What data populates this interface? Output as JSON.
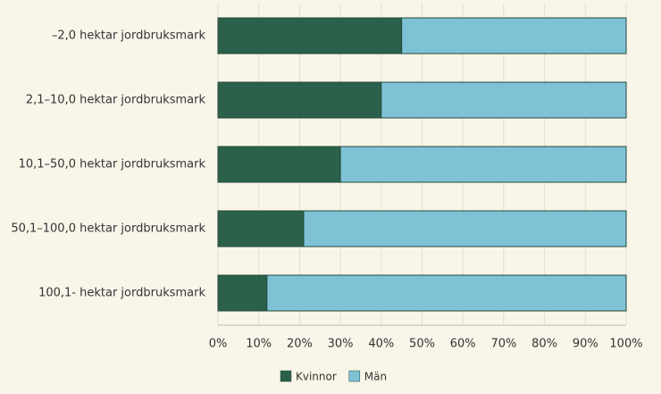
{
  "chart_data": {
    "type": "stacked-bar-horizontal",
    "categories": [
      "–2,0 hektar jordbruksmark",
      "2,1–10,0 hektar jordbruksmark",
      "10,1–50,0 hektar jordbruksmark",
      "50,1–100,0 hektar jordbruksmark",
      "100,1- hektar jordbruksmark"
    ],
    "series": [
      {
        "name": "Kvinnor",
        "color": "#2b614a",
        "values": [
          45,
          40,
          30,
          21,
          12
        ]
      },
      {
        "name": "Män",
        "color": "#7fc2d6",
        "values": [
          55,
          60,
          70,
          79,
          88
        ]
      }
    ],
    "xlim": [
      0,
      100
    ],
    "xticks": [
      {
        "value": 0,
        "label": "0%"
      },
      {
        "value": 10,
        "label": "10%"
      },
      {
        "value": 20,
        "label": "20%"
      },
      {
        "value": 30,
        "label": "30%"
      },
      {
        "value": 40,
        "label": "40%"
      },
      {
        "value": 50,
        "label": "50%"
      },
      {
        "value": 60,
        "label": "60%"
      },
      {
        "value": 70,
        "label": "70%"
      },
      {
        "value": 80,
        "label": "80%"
      },
      {
        "value": 90,
        "label": "90%"
      },
      {
        "value": 100,
        "label": "100%"
      }
    ],
    "grid": true
  }
}
